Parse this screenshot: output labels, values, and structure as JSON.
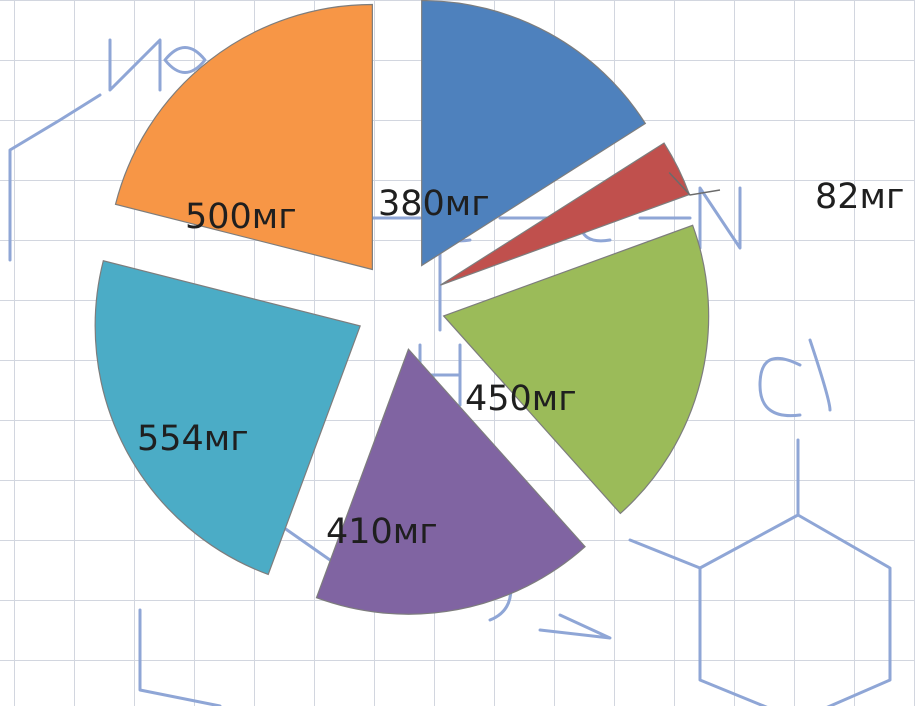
{
  "chart_data": {
    "type": "pie",
    "exploded": true,
    "unit": "мг",
    "slices": [
      {
        "label": "380мг",
        "value": 380,
        "color": "#4e81bd"
      },
      {
        "label": "82мг",
        "value": 82,
        "color": "#c0504d"
      },
      {
        "label": "450мг",
        "value": 450,
        "color": "#9bbb59"
      },
      {
        "label": "410мг",
        "value": 410,
        "color": "#8064a2"
      },
      {
        "label": "554мг",
        "value": 554,
        "color": "#4bacc6"
      },
      {
        "label": "500мг",
        "value": 500,
        "color": "#f79646"
      }
    ],
    "title": "",
    "legend": "none"
  }
}
